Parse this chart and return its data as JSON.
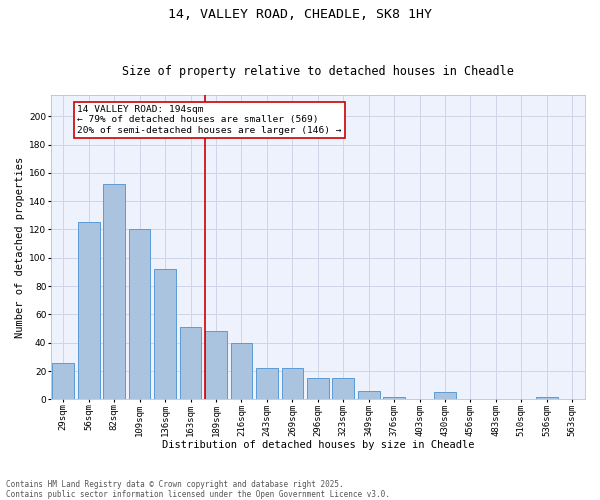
{
  "title1": "14, VALLEY ROAD, CHEADLE, SK8 1HY",
  "title2": "Size of property relative to detached houses in Cheadle",
  "xlabel": "Distribution of detached houses by size in Cheadle",
  "ylabel": "Number of detached properties",
  "categories": [
    "29sqm",
    "56sqm",
    "82sqm",
    "109sqm",
    "136sqm",
    "163sqm",
    "189sqm",
    "216sqm",
    "243sqm",
    "269sqm",
    "296sqm",
    "323sqm",
    "349sqm",
    "376sqm",
    "403sqm",
    "430sqm",
    "456sqm",
    "483sqm",
    "510sqm",
    "536sqm",
    "563sqm"
  ],
  "values": [
    26,
    125,
    152,
    120,
    92,
    51,
    48,
    40,
    22,
    22,
    15,
    15,
    6,
    2,
    0,
    5,
    0,
    0,
    0,
    2,
    0
  ],
  "bar_color": "#aac4e0",
  "bar_edge_color": "#5b9bd5",
  "vline_color": "#cc0000",
  "annotation_text": "14 VALLEY ROAD: 194sqm\n← 79% of detached houses are smaller (569)\n20% of semi-detached houses are larger (146) →",
  "annotation_box_color": "#cc0000",
  "ylim": [
    0,
    215
  ],
  "yticks": [
    0,
    20,
    40,
    60,
    80,
    100,
    120,
    140,
    160,
    180,
    200
  ],
  "grid_color": "#cdd5e8",
  "bg_color": "#eef2fc",
  "footer": "Contains HM Land Registry data © Crown copyright and database right 2025.\nContains public sector information licensed under the Open Government Licence v3.0.",
  "title1_fontsize": 9.5,
  "title2_fontsize": 8.5,
  "xlabel_fontsize": 7.5,
  "ylabel_fontsize": 7.5,
  "tick_fontsize": 6.5,
  "annotation_fontsize": 6.8,
  "footer_fontsize": 5.5
}
